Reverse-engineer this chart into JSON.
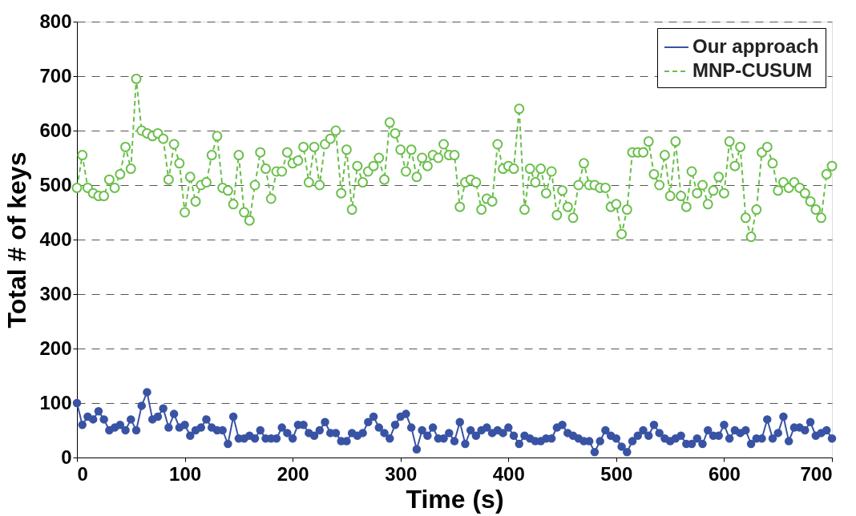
{
  "chart_data": {
    "type": "line",
    "xlabel": "Time (s)",
    "ylabel": "Total # of keys",
    "x": [
      0,
      5,
      10,
      15,
      20,
      25,
      30,
      35,
      40,
      45,
      50,
      55,
      60,
      65,
      70,
      75,
      80,
      85,
      90,
      95,
      100,
      105,
      110,
      115,
      120,
      125,
      130,
      135,
      140,
      145,
      150,
      155,
      160,
      165,
      170,
      175,
      180,
      185,
      190,
      195,
      200,
      205,
      210,
      215,
      220,
      225,
      230,
      235,
      240,
      245,
      250,
      255,
      260,
      265,
      270,
      275,
      280,
      285,
      290,
      295,
      300,
      305,
      310,
      315,
      320,
      325,
      330,
      335,
      340,
      345,
      350,
      355,
      360,
      365,
      370,
      375,
      380,
      385,
      390,
      395,
      400,
      405,
      410,
      415,
      420,
      425,
      430,
      435,
      440,
      445,
      450,
      455,
      460,
      465,
      470,
      475,
      480,
      485,
      490,
      495,
      500,
      505,
      510,
      515,
      520,
      525,
      530,
      535,
      540,
      545,
      550,
      555,
      560,
      565,
      570,
      575,
      580,
      585,
      590,
      595,
      600,
      605,
      610,
      615,
      620,
      625,
      630,
      635,
      640,
      645,
      650,
      655,
      660,
      665,
      670,
      675,
      680,
      685,
      690,
      695,
      700
    ],
    "series": [
      {
        "name": "Our approach",
        "color": "#3953a4",
        "marker": "circle",
        "line_style": "solid",
        "values": [
          100,
          60,
          75,
          70,
          85,
          70,
          50,
          55,
          60,
          50,
          70,
          50,
          95,
          120,
          70,
          75,
          90,
          55,
          80,
          55,
          60,
          40,
          50,
          55,
          70,
          55,
          50,
          50,
          25,
          75,
          35,
          35,
          40,
          35,
          50,
          35,
          35,
          35,
          55,
          45,
          35,
          60,
          60,
          45,
          40,
          50,
          65,
          45,
          45,
          30,
          30,
          45,
          40,
          45,
          65,
          75,
          55,
          45,
          35,
          60,
          75,
          80,
          55,
          15,
          50,
          40,
          55,
          35,
          35,
          45,
          30,
          65,
          25,
          50,
          40,
          50,
          55,
          45,
          50,
          45,
          55,
          40,
          25,
          40,
          35,
          30,
          30,
          35,
          35,
          55,
          60,
          45,
          40,
          35,
          30,
          30,
          10,
          30,
          50,
          40,
          35,
          20,
          10,
          30,
          40,
          50,
          40,
          60,
          45,
          35,
          30,
          35,
          40,
          25,
          25,
          35,
          25,
          50,
          40,
          40,
          60,
          35,
          50,
          45,
          50,
          25,
          35,
          35,
          70,
          35,
          45,
          75,
          30,
          55,
          55,
          50,
          65,
          40,
          45,
          50,
          35
        ]
      },
      {
        "name": "MNP-CUSUM",
        "color": "#6abf4b",
        "marker": "circle",
        "line_style": "dashed",
        "values": [
          495,
          555,
          495,
          485,
          480,
          480,
          510,
          495,
          520,
          570,
          530,
          695,
          600,
          595,
          590,
          595,
          585,
          510,
          575,
          540,
          450,
          515,
          470,
          500,
          505,
          555,
          590,
          495,
          490,
          465,
          555,
          450,
          435,
          500,
          560,
          530,
          475,
          525,
          525,
          560,
          540,
          545,
          570,
          505,
          570,
          500,
          575,
          585,
          600,
          485,
          565,
          455,
          535,
          505,
          525,
          535,
          550,
          510,
          615,
          595,
          565,
          525,
          565,
          515,
          550,
          535,
          555,
          550,
          575,
          555,
          555,
          460,
          505,
          510,
          505,
          455,
          475,
          470,
          575,
          530,
          535,
          530,
          640,
          455,
          530,
          505,
          530,
          485,
          525,
          445,
          490,
          460,
          440,
          500,
          540,
          500,
          500,
          495,
          495,
          460,
          465,
          410,
          455,
          560,
          560,
          560,
          580,
          520,
          500,
          555,
          480,
          580,
          480,
          460,
          525,
          485,
          500,
          465,
          490,
          515,
          485,
          580,
          535,
          570,
          440,
          405,
          455,
          560,
          570,
          540,
          490,
          505,
          495,
          505,
          495,
          485,
          470,
          455,
          440,
          520,
          535
        ]
      }
    ],
    "xlim": [
      0,
      700
    ],
    "xticks": [
      0,
      100,
      200,
      300,
      400,
      500,
      600,
      700
    ],
    "ylim": [
      0,
      800
    ],
    "yticks": [
      0,
      100,
      200,
      300,
      400,
      500,
      600,
      700,
      800
    ],
    "grid": "y",
    "legend": "top right"
  }
}
